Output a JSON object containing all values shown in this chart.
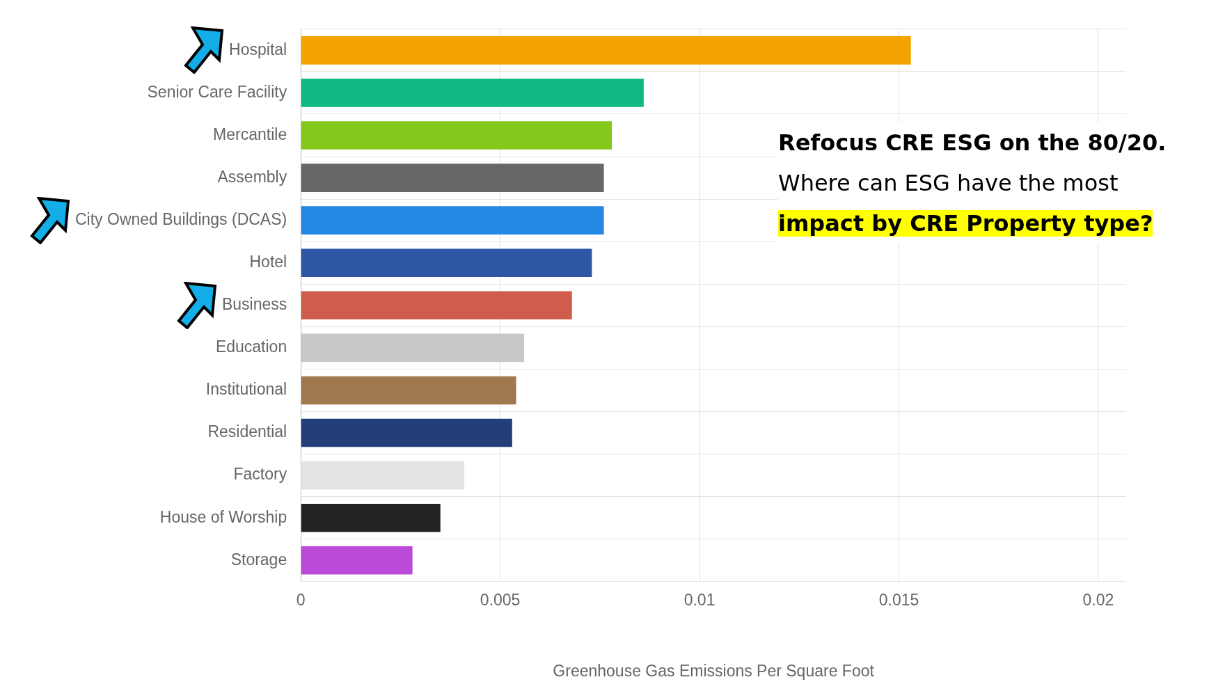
{
  "chart_data": {
    "type": "bar",
    "orientation": "horizontal",
    "xlabel": "Greenhouse Gas Emissions Per Square Foot",
    "categories": [
      "Hospital",
      "Senior Care Facility",
      "Mercantile",
      "Assembly",
      "City Owned Buildings (DCAS)",
      "Hotel",
      "Business",
      "Education",
      "Institutional",
      "Residential",
      "Factory",
      "House of Worship",
      "Storage"
    ],
    "values": [
      0.0153,
      0.0086,
      0.0078,
      0.0076,
      0.0076,
      0.0073,
      0.0068,
      0.0056,
      0.0054,
      0.0053,
      0.0041,
      0.0035,
      0.0028
    ],
    "colors": [
      "#f4a300",
      "#12b886",
      "#84c81c",
      "#666666",
      "#2389e3",
      "#2f55a5",
      "#d05c4b",
      "#c8c8c8",
      "#a07850",
      "#223f7a",
      "#e4e4e4",
      "#222222",
      "#bb4ad8"
    ],
    "xlim": [
      0,
      0.0207
    ],
    "xticks": [
      0,
      0.005,
      0.01,
      0.015,
      0.02
    ],
    "grid": true,
    "legend": false,
    "annotations": [
      "Refocus CRE ESG on the 80/20.",
      "Where can ESG have the most",
      "impact by CRE Property type?"
    ]
  }
}
